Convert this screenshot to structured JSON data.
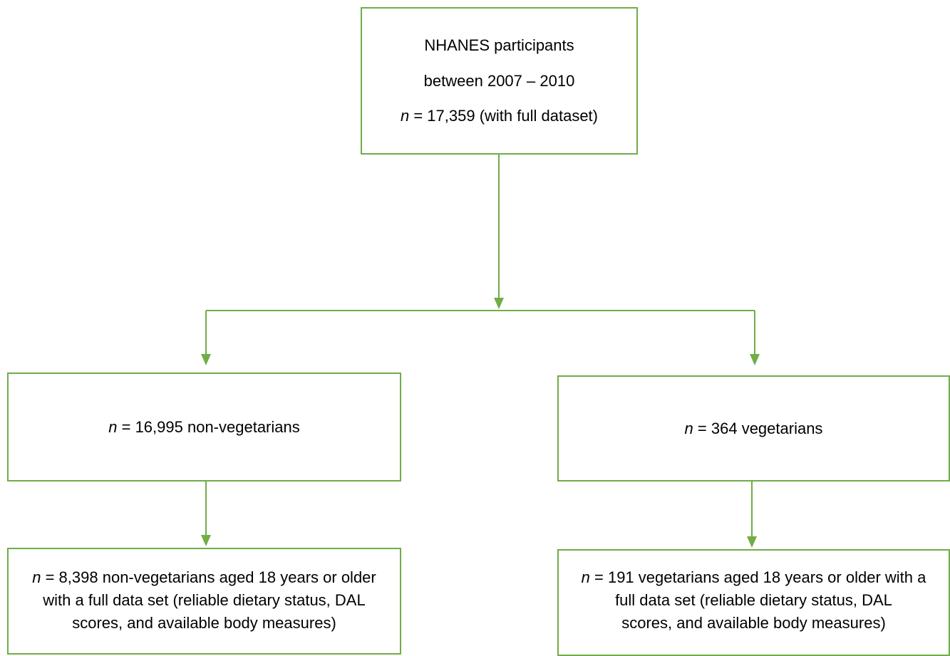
{
  "colors": {
    "accent": "#70ad47"
  },
  "top_box": {
    "line1": "NHANES participants",
    "line2": "between 2007 – 2010",
    "n_var": "n",
    "line3_rest": " = 17,359 (with full dataset)"
  },
  "left_group": {
    "n_var": "n",
    "count_text": " = 16,995 non-vegetarians"
  },
  "right_group": {
    "n_var": "n",
    "count_text": " = 364 vegetarians"
  },
  "left_final": {
    "n_var": "n",
    "line1_rest": " = 8,398 non-vegetarians aged 18 years or older",
    "line2": "with a full data set (reliable dietary status, DAL",
    "line3": "scores, and available body measures)"
  },
  "right_final": {
    "n_var": "n",
    "line1_rest": " = 191 vegetarians aged 18 years or older with a",
    "line2": "full data set (reliable dietary status, DAL",
    "line3": "scores, and available body measures)"
  }
}
